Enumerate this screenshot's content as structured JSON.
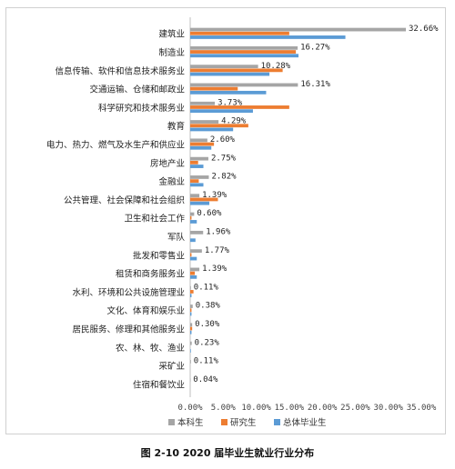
{
  "caption": "图 2-10   2020 届毕业生就业行业分布",
  "chart_data": {
    "type": "bar",
    "orientation": "horizontal",
    "categories": [
      "建筑业",
      "制造业",
      "信息传输、软件和信息技术服务业",
      "交通运输、仓储和邮政业",
      "科学研究和技术服务业",
      "教育",
      "电力、热力、燃气及水生产和供应业",
      "房地产业",
      "金融业",
      "公共管理、社会保障和社会组织",
      "卫生和社会工作",
      "军队",
      "批发和零售业",
      "租赁和商务服务业",
      "水利、环境和公共设施管理业",
      "文化、体育和娱乐业",
      "居民服务、修理和其他服务业",
      "农、林、牧、渔业",
      "采矿业",
      "住宿和餐饮业"
    ],
    "series": [
      {
        "name": "本科生",
        "color": "#a5a5a5",
        "values": [
          32.66,
          16.27,
          10.28,
          16.31,
          3.73,
          4.29,
          2.6,
          2.75,
          2.82,
          1.39,
          0.6,
          1.96,
          1.77,
          1.39,
          0.11,
          0.38,
          0.3,
          0.23,
          0.11,
          0.04
        ]
      },
      {
        "name": "研究生",
        "color": "#ed7d31",
        "values": [
          15.0,
          16.0,
          14.0,
          7.2,
          15.0,
          8.8,
          3.6,
          1.2,
          1.3,
          4.2,
          0.2,
          0.0,
          0.2,
          0.7,
          0.5,
          0.2,
          0.3,
          0.0,
          0.0,
          0.0
        ]
      },
      {
        "name": "总体毕业生",
        "color": "#5b9bd5",
        "values": [
          23.5,
          16.4,
          12.0,
          11.5,
          9.5,
          6.5,
          3.2,
          2.0,
          2.0,
          2.9,
          1.0,
          0.8,
          1.0,
          1.0,
          0.2,
          0.2,
          0.2,
          0.1,
          0.0,
          0.0
        ]
      }
    ],
    "data_labels": [
      "32.66%",
      "16.27%",
      "10.28%",
      "16.31%",
      "3.73%",
      "4.29%",
      "2.60%",
      "2.75%",
      "2.82%",
      "1.39%",
      "0.60%",
      "1.96%",
      "1.77%",
      "1.39%",
      "0.11%",
      "0.38%",
      "0.30%",
      "0.23%",
      "0.11%",
      "0.04%"
    ],
    "xlim": [
      0,
      35
    ],
    "xticks": [
      "0.00%",
      "5.00%",
      "10.00%",
      "15.00%",
      "20.00%",
      "25.00%",
      "30.00%",
      "35.00%"
    ],
    "legend_position": "bottom",
    "legend": [
      "本科生",
      "研究生",
      "总体毕业生"
    ]
  }
}
